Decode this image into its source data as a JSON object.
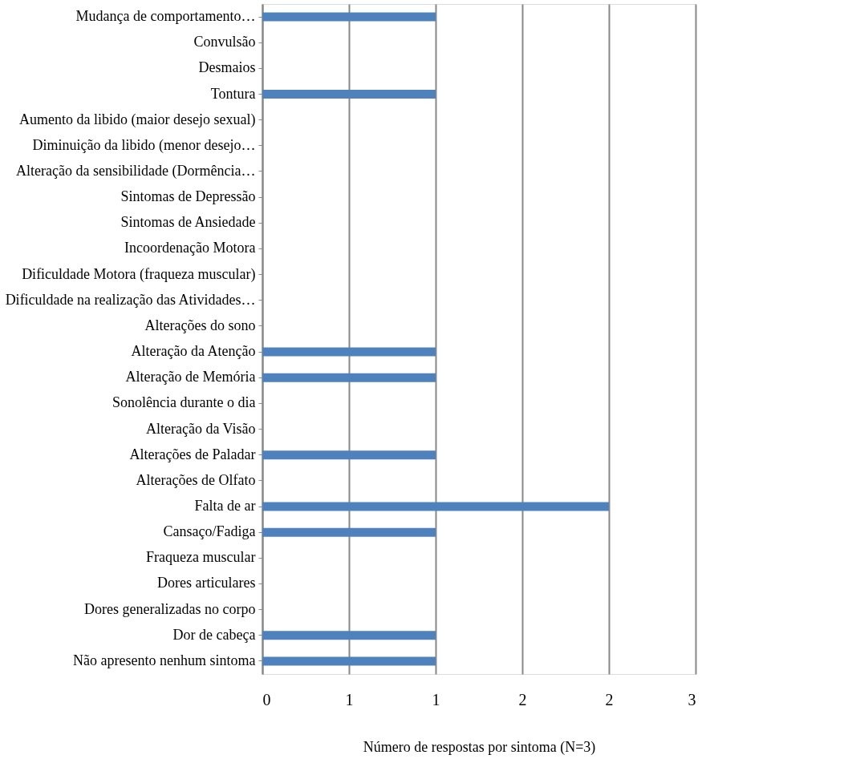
{
  "chart_data": {
    "type": "bar",
    "orientation": "horizontal",
    "xlabel": "Número de respostas por sintoma (N=3)",
    "categories": [
      "Mudança de comportamento…",
      "Convulsão",
      "Desmaios",
      "Tontura",
      "Aumento da libido (maior desejo sexual)",
      "Diminuição da libido (menor desejo…",
      "Alteração da sensibilidade (Dormência…",
      "Sintomas de Depressão ",
      "Sintomas de Ansiedade",
      "Incoordenação Motora",
      "Dificuldade Motora (fraqueza muscular)",
      "Dificuldade na realização das Atividades…",
      "Alterações do sono",
      "Alteração da Atenção",
      "Alteração de Memória ",
      "Sonolência durante o dia",
      "Alteração da Visão",
      "Alterações de Paladar ",
      "Alterações de Olfato",
      "Falta de ar",
      "Cansaço/Fadiga",
      "Fraqueza muscular",
      "Dores articulares",
      "Dores generalizadas no corpo",
      "Dor de cabeça",
      "Não apresento nenhum sintoma"
    ],
    "values": [
      1,
      0,
      0,
      1,
      0,
      0,
      0,
      0,
      0,
      0,
      0,
      0,
      0,
      1,
      1,
      0,
      0,
      1,
      0,
      2,
      1,
      0,
      0,
      0,
      1,
      1
    ],
    "color": "#4f81bd",
    "xlim": [
      0,
      2.5
    ],
    "xticks": [
      0,
      {
        "value": 0.5,
        "label": "1"
      },
      1,
      {
        "value": 1.5,
        "label": "2"
      },
      2,
      {
        "value": 2.5,
        "label": "3"
      }
    ],
    "grid": "x"
  }
}
